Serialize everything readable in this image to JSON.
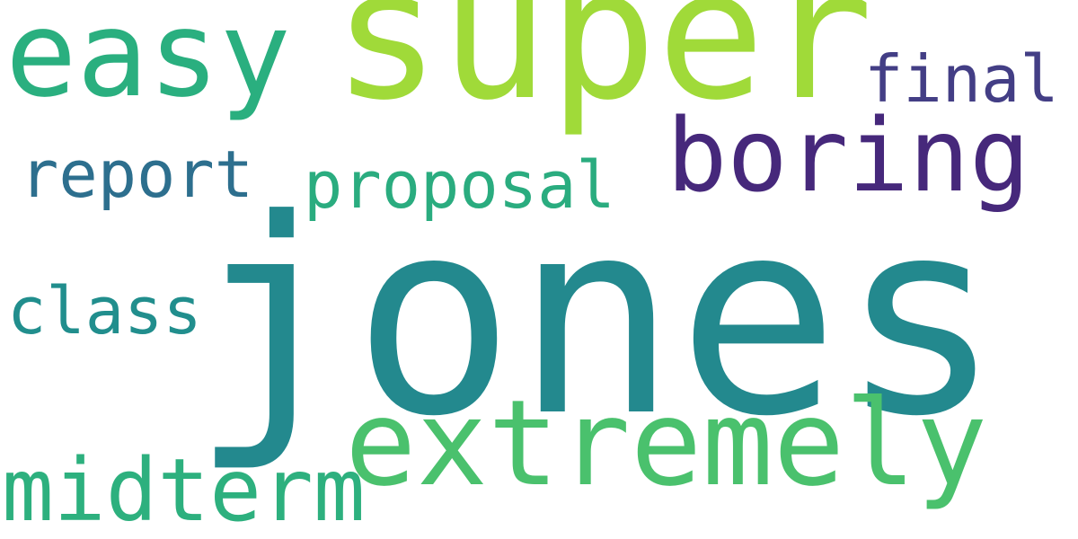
{
  "words": [
    {
      "text": "jones",
      "color": "#23898e"
    },
    {
      "text": "super",
      "color": "#a0da39"
    },
    {
      "text": "easy",
      "color": "#2aaf7f"
    },
    {
      "text": "extremely",
      "color": "#4ac16d"
    },
    {
      "text": "boring",
      "color": "#46287b"
    },
    {
      "text": "midterm",
      "color": "#2db07e"
    },
    {
      "text": "proposal",
      "color": "#2aac7f"
    },
    {
      "text": "report",
      "color": "#2d6f8e"
    },
    {
      "text": "class",
      "color": "#218e8d"
    },
    {
      "text": "final",
      "color": "#433e85"
    }
  ]
}
